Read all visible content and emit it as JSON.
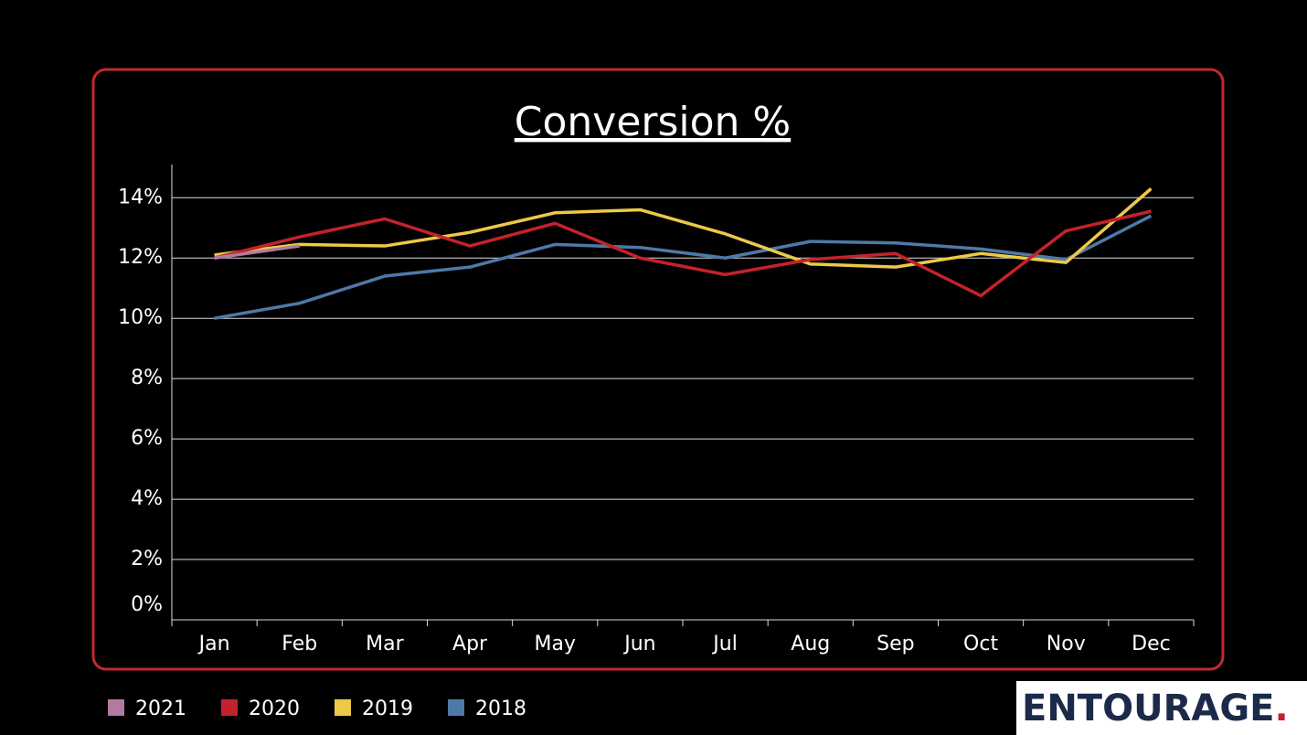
{
  "chart_data": {
    "type": "line",
    "title": "Conversion %",
    "categories": [
      "Jan",
      "Feb",
      "Mar",
      "Apr",
      "May",
      "Jun",
      "Jul",
      "Aug",
      "Sep",
      "Oct",
      "Nov",
      "Dec"
    ],
    "series": [
      {
        "name": "2021",
        "color": "#b07aa1",
        "values": [
          12.0,
          12.4,
          null,
          null,
          null,
          null,
          null,
          null,
          null,
          null,
          null,
          null
        ]
      },
      {
        "name": "2020",
        "color": "#c4222b",
        "values": [
          12.0,
          12.7,
          13.3,
          12.4,
          13.15,
          12.0,
          11.45,
          11.95,
          12.15,
          10.75,
          12.9,
          13.55
        ]
      },
      {
        "name": "2019",
        "color": "#edc948",
        "values": [
          12.1,
          12.45,
          12.4,
          12.85,
          13.5,
          13.6,
          12.8,
          11.8,
          11.7,
          12.15,
          11.85,
          14.3
        ]
      },
      {
        "name": "2018",
        "color": "#4e79a7",
        "values": [
          10.0,
          10.5,
          11.4,
          11.7,
          12.45,
          12.35,
          12.0,
          12.55,
          12.5,
          12.3,
          11.95,
          13.4
        ]
      }
    ],
    "ylim": [
      0,
      15.1
    ],
    "yticks": [
      {
        "value": 0,
        "label": "0%"
      },
      {
        "value": 2,
        "label": "2%"
      },
      {
        "value": 4,
        "label": "4%"
      },
      {
        "value": 6,
        "label": "6%"
      },
      {
        "value": 8,
        "label": "8%"
      },
      {
        "value": 10,
        "label": "10%"
      },
      {
        "value": 12,
        "label": "12%"
      },
      {
        "value": 14,
        "label": "14%"
      }
    ],
    "grid": true,
    "legend": "bottom-left"
  },
  "logo": {
    "name": "ENTOURAGE",
    "dot": "."
  }
}
